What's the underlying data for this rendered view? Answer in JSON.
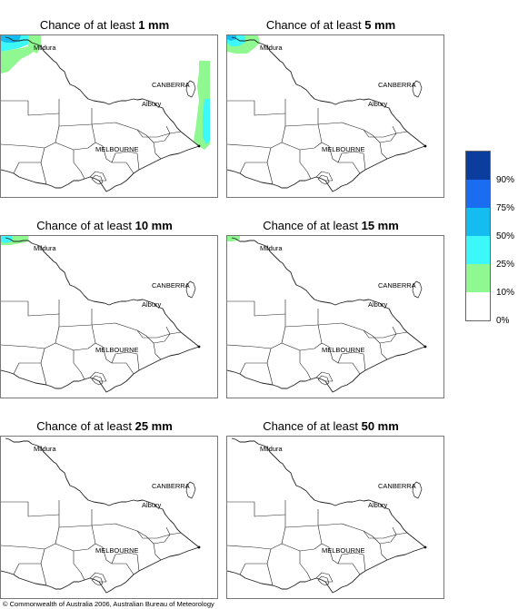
{
  "panels": [
    {
      "prefix": "Chance of at least ",
      "amount": "1 mm"
    },
    {
      "prefix": "Chance of at least ",
      "amount": "5 mm"
    },
    {
      "prefix": "Chance of at least ",
      "amount": "10 mm"
    },
    {
      "prefix": "Chance of at least ",
      "amount": "15 mm"
    },
    {
      "prefix": "Chance of at least ",
      "amount": "25 mm"
    },
    {
      "prefix": "Chance of at least ",
      "amount": "50 mm"
    }
  ],
  "places": {
    "mildura": "Mildura",
    "canberra": "CANBERRA",
    "albury": "Albury",
    "melbourne": "MELBOURNE"
  },
  "legend": {
    "labels": [
      "90%",
      "75%",
      "50%",
      "25%",
      "10%",
      "0%"
    ],
    "colors": [
      "#0a3d9e",
      "#1a6cf0",
      "#14bcf0",
      "#3cf8f8",
      "#90f890",
      "#ffffff"
    ]
  },
  "copyright": "© Commonwealth of Australia 2006, Australian Bureau of Meteorology"
}
